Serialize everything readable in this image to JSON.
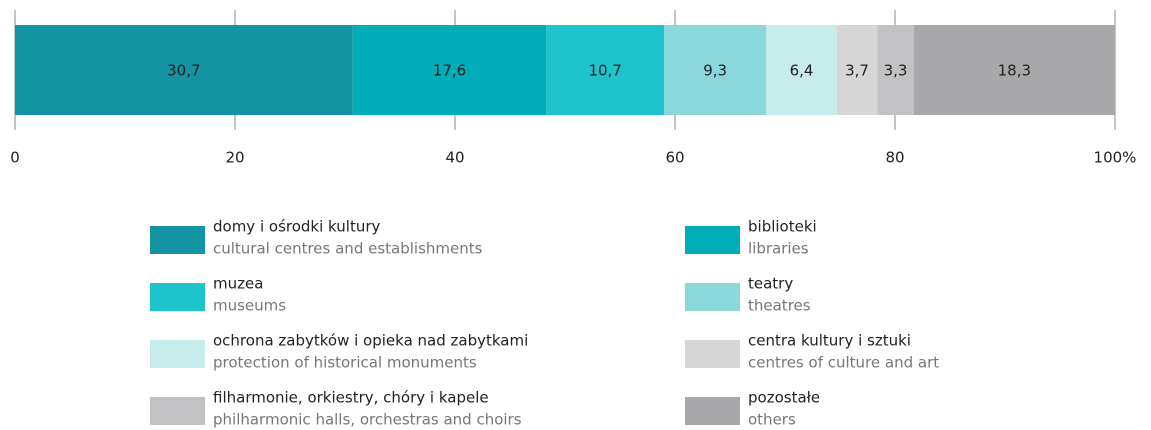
{
  "chart_data": {
    "type": "bar",
    "orientation": "horizontal",
    "stacked": true,
    "xlim": [
      0,
      100
    ],
    "xticks": [
      0,
      20,
      40,
      60,
      80,
      {
        "value": 100,
        "label": "100%"
      }
    ],
    "grid": true,
    "series": [
      {
        "name": "domy i ośrodki kultury",
        "name_en": "cultural centres and establishments",
        "color": "#1493a3",
        "values": [
          30.7
        ],
        "value_labels": [
          "30,7"
        ]
      },
      {
        "name": "biblioteki",
        "name_en": "libraries",
        "color": "#00adb8",
        "values": [
          17.6
        ],
        "value_labels": [
          "17,6"
        ]
      },
      {
        "name": "muzea",
        "name_en": "museums",
        "color": "#1ec4cc",
        "values": [
          10.7
        ],
        "value_labels": [
          "10,7"
        ]
      },
      {
        "name": "teatry",
        "name_en": "theatres",
        "color": "#8ad8dc",
        "values": [
          9.3
        ],
        "value_labels": [
          "9,3"
        ]
      },
      {
        "name": "ochrona zabytków i opieka nad zabytkami",
        "name_en": "protection of historical monuments",
        "color": "#c6ecec",
        "values": [
          6.4
        ],
        "value_labels": [
          "6,4"
        ]
      },
      {
        "name": "centra kultury i sztuki",
        "name_en": "centres of culture and art",
        "color": "#d6d6d6",
        "values": [
          3.7
        ],
        "value_labels": [
          "3,7"
        ]
      },
      {
        "name": "filharmonie, orkiestry, chóry i kapele",
        "name_en": "philharmonic halls, orchestras and choirs",
        "color": "#c2c2c4",
        "values": [
          3.3
        ],
        "value_labels": [
          "3,3"
        ]
      },
      {
        "name": "pozostałe",
        "name_en": "others",
        "color": "#a8a8aa",
        "values": [
          18.3
        ],
        "value_labels": [
          "18,3"
        ]
      }
    ]
  }
}
